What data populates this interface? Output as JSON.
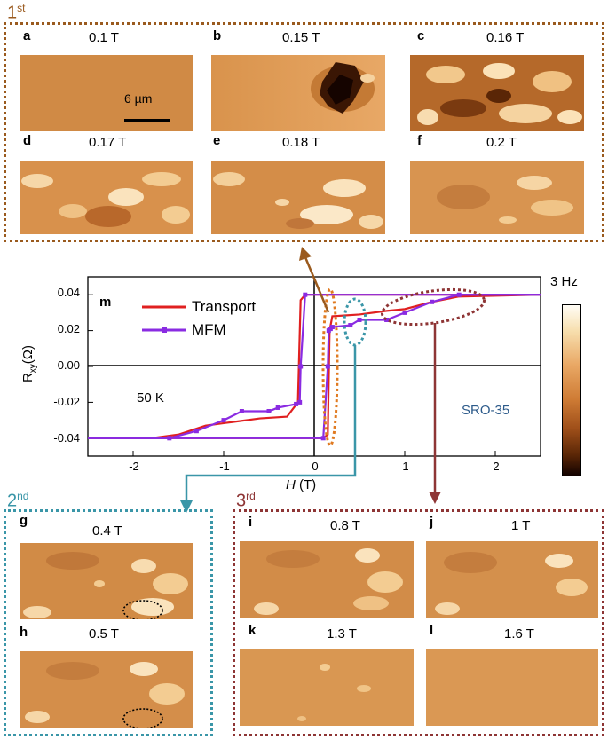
{
  "colors": {
    "stage1": "#9a5a1e",
    "stage2": "#3a96a8",
    "stage3": "#8e3535",
    "transport": "#e02020",
    "mfm": "#8a2be2",
    "sample_label": "#2c5a8a"
  },
  "stages": {
    "first": {
      "ordinal": "1",
      "suffix": "st"
    },
    "second": {
      "ordinal": "2",
      "suffix": "nd"
    },
    "third": {
      "ordinal": "3",
      "suffix": "rd"
    }
  },
  "panels": {
    "a": {
      "letter": "a",
      "field": "0.1 T",
      "scale_bar": "6 µm"
    },
    "b": {
      "letter": "b",
      "field": "0.15 T"
    },
    "c": {
      "letter": "c",
      "field": "0.16 T"
    },
    "d": {
      "letter": "d",
      "field": "0.17 T"
    },
    "e": {
      "letter": "e",
      "field": "0.18 T"
    },
    "f": {
      "letter": "f",
      "field": "0.2 T"
    },
    "g": {
      "letter": "g",
      "field": "0.4 T"
    },
    "h": {
      "letter": "h",
      "field": "0.5 T"
    },
    "i": {
      "letter": "i",
      "field": "0.8 T"
    },
    "j": {
      "letter": "j",
      "field": "1 T"
    },
    "k": {
      "letter": "k",
      "field": "1.3 T"
    },
    "l": {
      "letter": "l",
      "field": "1.6 T"
    }
  },
  "plot": {
    "panel_letter": "m",
    "temperature": "50 K",
    "sample": "SRO-35",
    "colorbar_label": "3 Hz",
    "ylabel_main": "R",
    "ylabel_sub": "xy",
    "ylabel_unit": "(Ω)",
    "xlabel_italic": "H",
    "xlabel_unit": " (T)",
    "legend": {
      "transport": "Transport",
      "mfm": "MFM"
    }
  },
  "chart_data": {
    "type": "line",
    "title": "",
    "xlabel": "H (T)",
    "ylabel": "Rxy (Ω)",
    "xlim": [
      -2.5,
      2.5
    ],
    "ylim": [
      -0.05,
      0.05
    ],
    "xticks": [
      "-2",
      "-1",
      "0",
      "1",
      "2"
    ],
    "yticks": [
      "0.04",
      "0.02",
      "0.00",
      "-0.02",
      "-0.04"
    ],
    "series": [
      {
        "name": "Transport",
        "up": [
          [
            -2.5,
            -0.04
          ],
          [
            0.1,
            -0.04
          ],
          [
            0.15,
            -0.038
          ],
          [
            0.17,
            0.02
          ],
          [
            0.2,
            0.028
          ],
          [
            0.5,
            0.029
          ],
          [
            0.8,
            0.031
          ],
          [
            1.0,
            0.032
          ],
          [
            1.3,
            0.036
          ],
          [
            1.6,
            0.039
          ],
          [
            2.5,
            0.04
          ]
        ],
        "down": [
          [
            2.5,
            0.04
          ],
          [
            -0.1,
            0.04
          ],
          [
            -0.15,
            0.037
          ],
          [
            -0.18,
            -0.02
          ],
          [
            -0.3,
            -0.028
          ],
          [
            -0.6,
            -0.029
          ],
          [
            -0.9,
            -0.031
          ],
          [
            -1.2,
            -0.033
          ],
          [
            -1.5,
            -0.038
          ],
          [
            -1.8,
            -0.04
          ],
          [
            -2.5,
            -0.04
          ]
        ]
      },
      {
        "name": "MFM",
        "up": [
          [
            -2.5,
            -0.04
          ],
          [
            0.1,
            -0.04
          ],
          [
            0.15,
            0.0
          ],
          [
            0.16,
            0.02
          ],
          [
            0.17,
            0.021
          ],
          [
            0.18,
            0.021
          ],
          [
            0.2,
            0.022
          ],
          [
            0.4,
            0.023
          ],
          [
            0.5,
            0.026
          ],
          [
            0.8,
            0.026
          ],
          [
            1.0,
            0.03
          ],
          [
            1.3,
            0.036
          ],
          [
            1.6,
            0.04
          ],
          [
            2.5,
            0.04
          ]
        ],
        "down": [
          [
            2.5,
            0.04
          ],
          [
            -0.1,
            0.04
          ],
          [
            -0.15,
            0.0
          ],
          [
            -0.16,
            -0.02
          ],
          [
            -0.2,
            -0.021
          ],
          [
            -0.4,
            -0.023
          ],
          [
            -0.5,
            -0.025
          ],
          [
            -0.8,
            -0.025
          ],
          [
            -1.0,
            -0.03
          ],
          [
            -1.3,
            -0.036
          ],
          [
            -1.6,
            -0.04
          ],
          [
            -2.5,
            -0.04
          ]
        ]
      }
    ],
    "colorbar_range": "3 Hz"
  }
}
